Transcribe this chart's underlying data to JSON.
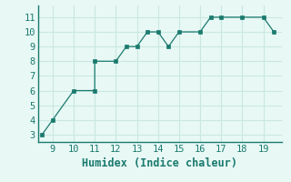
{
  "x": [
    8.5,
    9,
    10,
    11,
    11,
    12,
    12.5,
    13,
    13.5,
    14,
    14.5,
    15,
    16,
    16.5,
    17,
    18,
    19,
    19.5
  ],
  "y": [
    3,
    4,
    6,
    6,
    8,
    8,
    9,
    9,
    10,
    10,
    9,
    10,
    10,
    11,
    11,
    11,
    11,
    10
  ],
  "xlim": [
    8.3,
    19.9
  ],
  "ylim": [
    2.5,
    11.8
  ],
  "xticks": [
    9,
    10,
    11,
    12,
    13,
    14,
    15,
    16,
    17,
    18,
    19
  ],
  "yticks": [
    3,
    4,
    5,
    6,
    7,
    8,
    9,
    10,
    11
  ],
  "xlabel": "Humidex (Indice chaleur)",
  "line_color": "#1a7a6e",
  "marker_color": "#1a7a6e",
  "bg_color": "#e8f8f5",
  "grid_color": "#c8e8e0",
  "axis_color": "#1a7a6e",
  "tick_label_color": "#1a7a6e",
  "xlabel_color": "#1a7a6e",
  "tick_font_size": 7.5,
  "xlabel_font_size": 8.5
}
